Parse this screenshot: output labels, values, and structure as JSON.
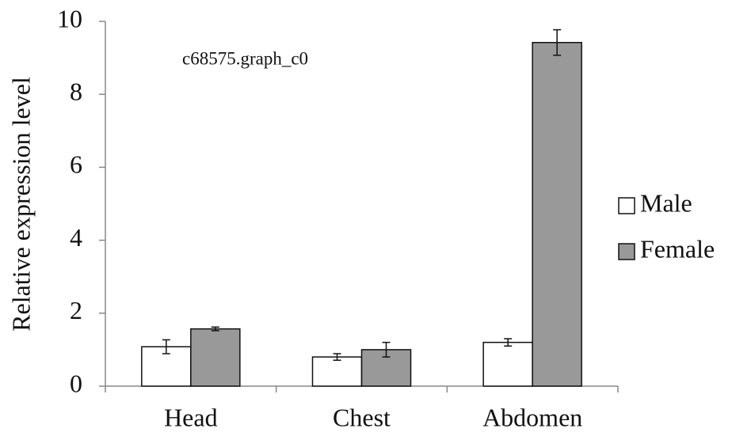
{
  "chart_data": {
    "type": "bar",
    "y_label": "Relative expression level",
    "annotation": "c68575.graph_c0",
    "categories": [
      "Head",
      "Chest",
      "Abdomen"
    ],
    "series": [
      {
        "name": "Male",
        "color": "#ffffff",
        "values": [
          1.08,
          0.8,
          1.2
        ],
        "errors": [
          0.19,
          0.09,
          0.1
        ]
      },
      {
        "name": "Female",
        "color": "#999999",
        "values": [
          1.57,
          1.0,
          9.42
        ],
        "errors": [
          0.05,
          0.2,
          0.35
        ]
      }
    ],
    "ylim": [
      0,
      10
    ],
    "yticks": [
      0,
      2,
      4,
      6,
      8,
      10
    ],
    "legend": "right"
  }
}
